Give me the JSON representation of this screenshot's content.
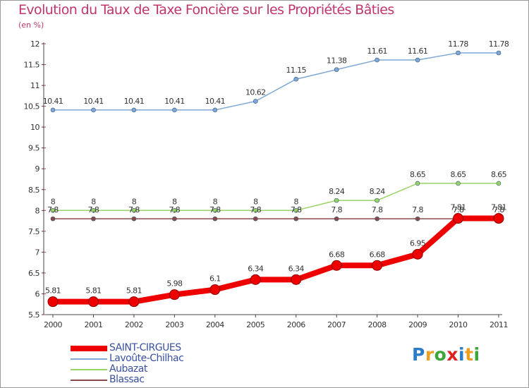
{
  "header": {
    "title": "Evolution du Taux de Taxe Foncière sur les Propriétés Bâties",
    "unit": "(en %)"
  },
  "logo": {
    "letters": [
      "P",
      "r",
      "o",
      "x",
      "i",
      "t",
      "i"
    ],
    "colors": [
      "#2b7cc9",
      "#f0a020",
      "#3aa63a",
      "#e02020",
      "#2b7cc9",
      "#f0a020",
      "#3aa63a"
    ]
  },
  "chart_data": {
    "type": "line",
    "title": "Evolution du Taux de Taxe Foncière sur les Propriétés Bâties",
    "ylabel": "(en %)",
    "xlabel": "",
    "ylim": [
      5.5,
      12
    ],
    "yticks": [
      5.5,
      6,
      6.5,
      7,
      7.5,
      8,
      8.5,
      9,
      9.5,
      10,
      10.5,
      11,
      11.5,
      12
    ],
    "x": [
      "2000",
      "2001",
      "2002",
      "2003",
      "2004",
      "2005",
      "2006",
      "2007",
      "2008",
      "2009",
      "2010",
      "2011"
    ],
    "series": [
      {
        "name": "SAINT-CIRGUES",
        "color": "#ee0000",
        "width": 8,
        "marker": 7,
        "label_dy": -12,
        "values": [
          5.81,
          5.81,
          5.81,
          5.98,
          6.1,
          6.34,
          6.34,
          6.68,
          6.68,
          6.95,
          7.81,
          7.81
        ],
        "labels": [
          "5.81",
          "5.81",
          "5.81",
          "5.98",
          "6.1",
          "6.34",
          "6.34",
          "6.68",
          "6.68",
          "6.95",
          "7.81",
          "7.81"
        ]
      },
      {
        "name": "Lavoûte-Chilhac",
        "color": "#7fa8d6",
        "width": 1.5,
        "marker": 3,
        "label_dy": -9,
        "values": [
          10.41,
          10.41,
          10.41,
          10.41,
          10.41,
          10.62,
          11.15,
          11.38,
          11.61,
          11.61,
          11.78,
          11.78
        ],
        "labels": [
          "10.41",
          "10.41",
          "10.41",
          "10.41",
          "10.41",
          "10.62",
          "11.15",
          "11.38",
          "11.61",
          "11.61",
          "11.78",
          "11.78"
        ]
      },
      {
        "name": "Aubazat",
        "color": "#99d466",
        "width": 1.5,
        "marker": 3,
        "label_dy": -9,
        "values": [
          8,
          8,
          8,
          8,
          8,
          8,
          8,
          8.24,
          8.24,
          8.65,
          8.65,
          8.65
        ],
        "labels": [
          "8",
          "8",
          "8",
          "8",
          "8",
          "8",
          "8",
          "8.24",
          "8.24",
          "8.65",
          "8.65",
          "8.65"
        ]
      },
      {
        "name": "Blassac",
        "color": "#8a4a4a",
        "width": 1.5,
        "marker": 3,
        "label_dy": -9,
        "values": [
          7.8,
          7.8,
          7.8,
          7.8,
          7.8,
          7.8,
          7.8,
          7.8,
          7.8,
          7.8,
          7.8,
          7.8
        ],
        "labels": [
          "7.8",
          "7.8",
          "7.8",
          "7.8",
          "7.8",
          "7.8",
          "7.8",
          "7.8",
          "7.8",
          "7.8",
          "7.8",
          "7.8"
        ]
      }
    ],
    "grid": false,
    "legend": "bottom-left"
  }
}
